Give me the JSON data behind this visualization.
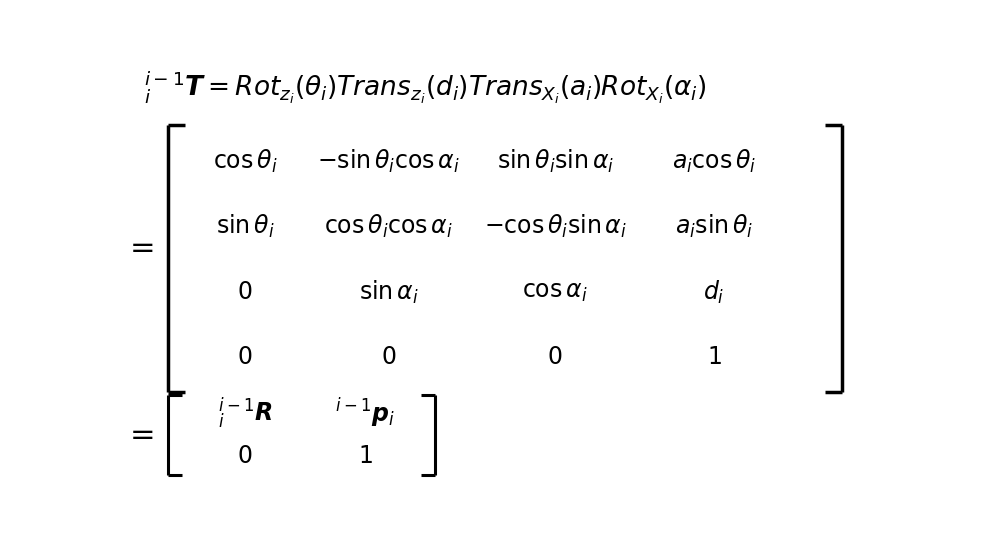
{
  "background_color": "#ffffff",
  "text_color": "#000000",
  "figsize": [
    10.0,
    5.49
  ],
  "dpi": 100,
  "fontsize_main": 19,
  "fontsize_matrix": 17,
  "fontsize_eq": 22
}
